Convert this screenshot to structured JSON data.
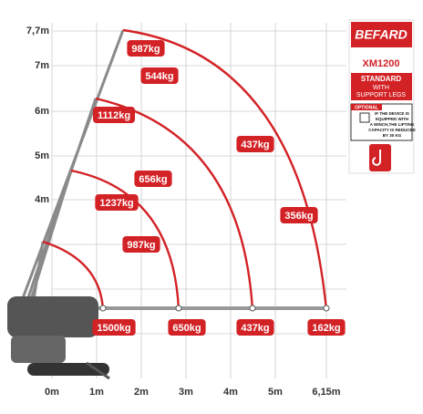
{
  "x_labels": [
    "0m",
    "1m",
    "2m",
    "3m",
    "4m",
    "5m",
    "6,15m"
  ],
  "y_labels": [
    "7,7m",
    "7m",
    "6m",
    "5m",
    "4m"
  ],
  "loads": [
    "987kg",
    "544kg",
    "1112kg",
    "437kg",
    "656kg",
    "1237kg",
    "356kg",
    "987kg",
    "1500kg",
    "650kg",
    "437kg",
    "162kg"
  ],
  "panel": {
    "brand": "BEFARD",
    "model": "XM1200",
    "standard": "STANDARD",
    "with": "WITH",
    "legs": "SUPPORT LEGS",
    "optional": "OPTIONAL",
    "note": [
      "IF THE DEVICE IS",
      "EQUIPPED WITH",
      "A WINCH,THE LIFTING",
      "CAPACITY IS REDUCED",
      "BY 30 KG"
    ]
  }
}
